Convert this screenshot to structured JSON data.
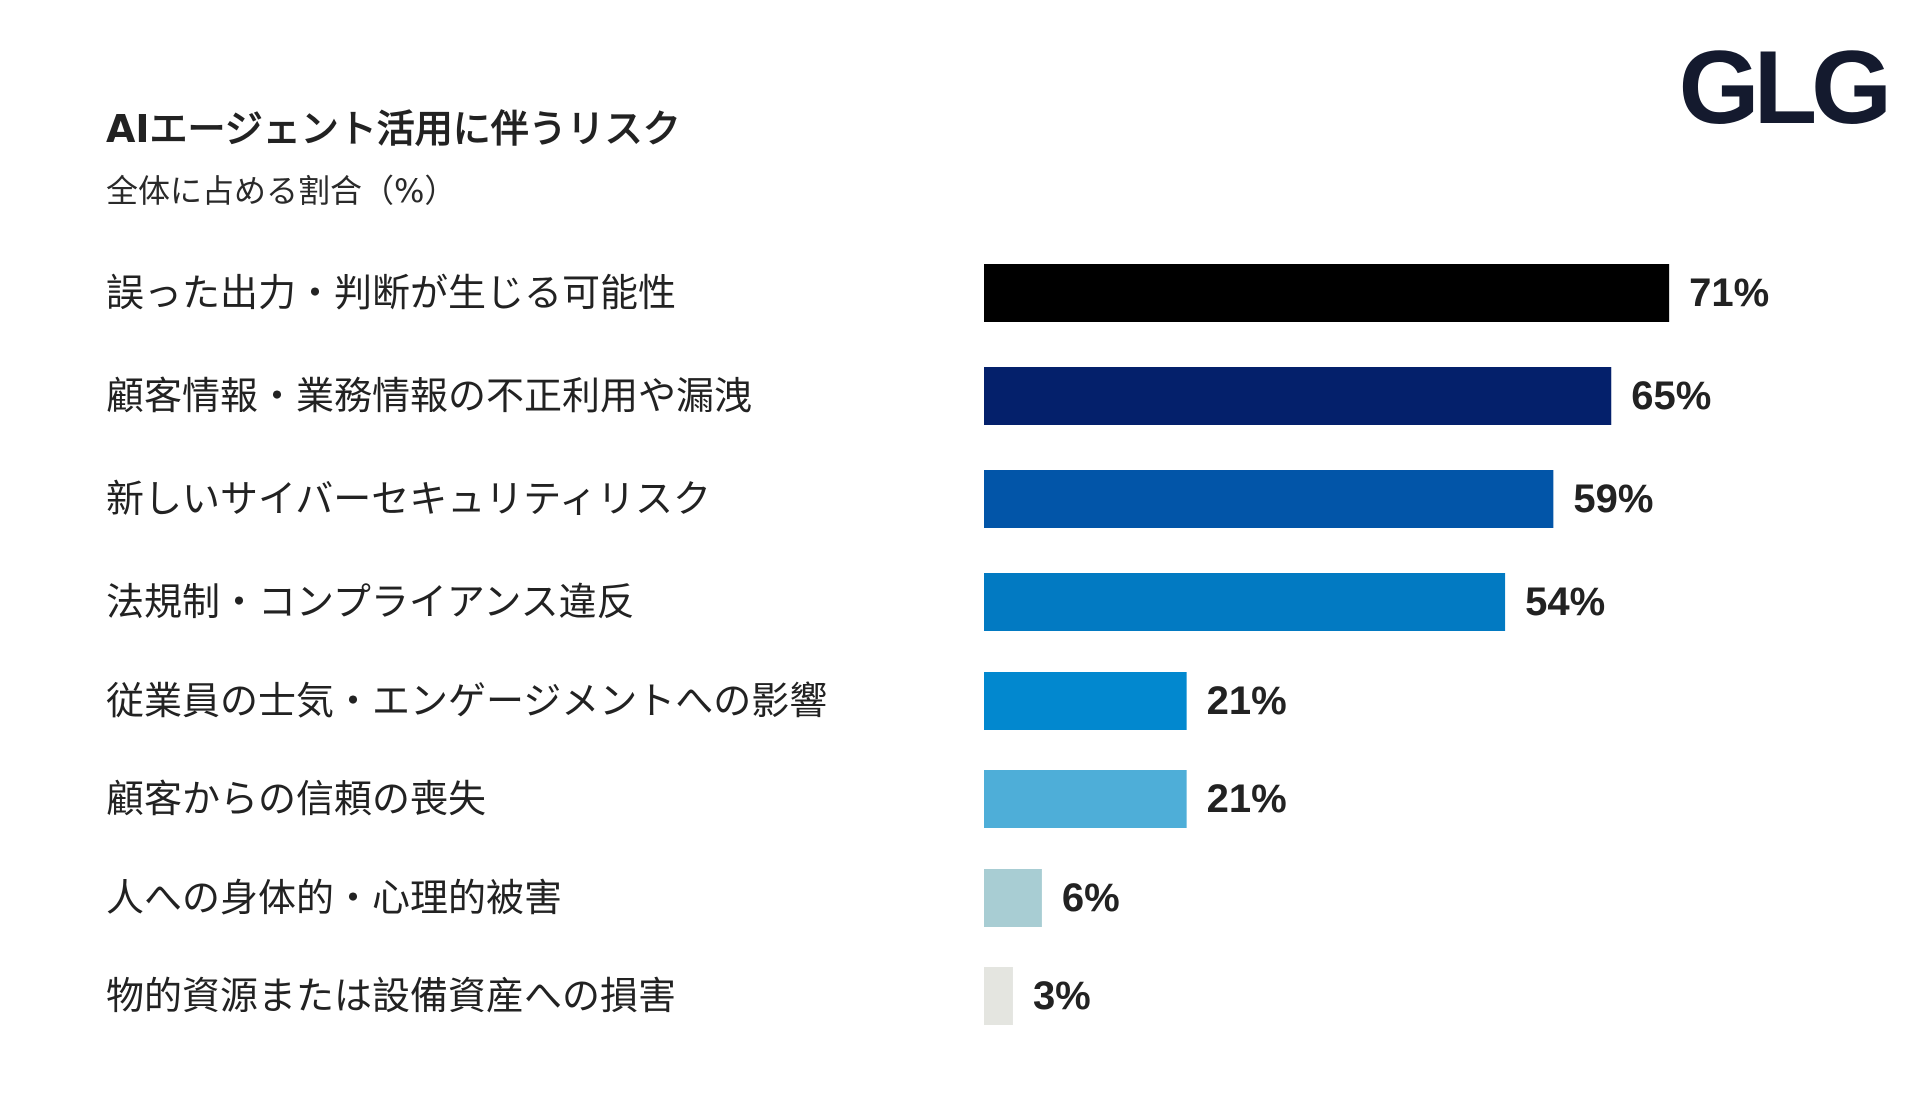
{
  "brand": {
    "logo_text": "GLG",
    "logo_color": "#141a2e"
  },
  "chart_data": {
    "type": "bar",
    "orientation": "horizontal",
    "title": "AIエージェント活用に伴うリスク",
    "subtitle": "全体に占める割合（%）",
    "categories": [
      "誤った出力・判断が生じる可能性",
      "顧客情報・業務情報の不正利用や漏洩",
      "新しいサイバーセキュリティリスク",
      "法規制・コンプライアンス違反",
      "従業員の士気・エンゲージメントへの影響",
      "顧客からの信頼の喪失",
      "人への身体的・心理的被害",
      "物的資源または設備資産への損害"
    ],
    "values": [
      71,
      65,
      59,
      54,
      21,
      21,
      6,
      3
    ],
    "value_labels": [
      "71%",
      "65%",
      "59%",
      "54%",
      "21%",
      "21%",
      "6%",
      "3%"
    ],
    "colors": [
      "#000000",
      "#04206b",
      "#0255a8",
      "#027ac2",
      "#0288cf",
      "#4eaed8",
      "#a8cdd3",
      "#e4e5e0"
    ],
    "unit": "%",
    "grid": false,
    "legend": "none"
  }
}
